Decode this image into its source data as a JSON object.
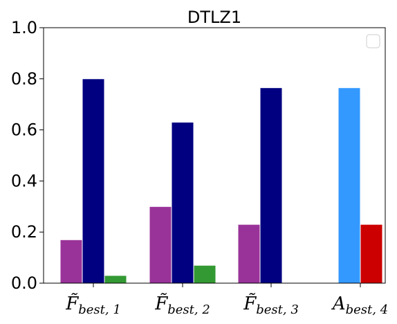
{
  "chart_data": {
    "type": "bar",
    "title": "DTLZ1",
    "xlabel": "",
    "ylabel": "",
    "ylim": [
      0,
      1
    ],
    "yticks": [
      0.0,
      0.2,
      0.4,
      0.6,
      0.8,
      1.0
    ],
    "ytick_labels": [
      "0.0",
      "0.2",
      "0.4",
      "0.6",
      "0.8",
      "1.0"
    ],
    "legend": {
      "visible": true,
      "placement": "top-right",
      "entries": []
    },
    "grid": false,
    "categories": [
      {
        "base": "F̃",
        "sub": "best, 1"
      },
      {
        "base": "F̃",
        "sub": "best, 2"
      },
      {
        "base": "F̃",
        "sub": "best, 3"
      },
      {
        "base": "A",
        "sub": "best, 4"
      }
    ],
    "bars": [
      {
        "category": 0,
        "slot": -1,
        "value": 0.17,
        "color": "#993399"
      },
      {
        "category": 0,
        "slot": 0,
        "value": 0.8,
        "color": "#000080"
      },
      {
        "category": 0,
        "slot": 1,
        "value": 0.03,
        "color": "#339933"
      },
      {
        "category": 1,
        "slot": -1,
        "value": 0.3,
        "color": "#993399"
      },
      {
        "category": 1,
        "slot": 0,
        "value": 0.63,
        "color": "#000080"
      },
      {
        "category": 1,
        "slot": 1,
        "value": 0.07,
        "color": "#339933"
      },
      {
        "category": 2,
        "slot": -1,
        "value": 0.23,
        "color": "#993399"
      },
      {
        "category": 2,
        "slot": 0,
        "value": 0.765,
        "color": "#000080"
      },
      {
        "category": 3,
        "slot": -0.5,
        "value": 0.765,
        "color": "#3399ff"
      },
      {
        "category": 3,
        "slot": 0.5,
        "value": 0.23,
        "color": "#cc0000"
      }
    ]
  }
}
